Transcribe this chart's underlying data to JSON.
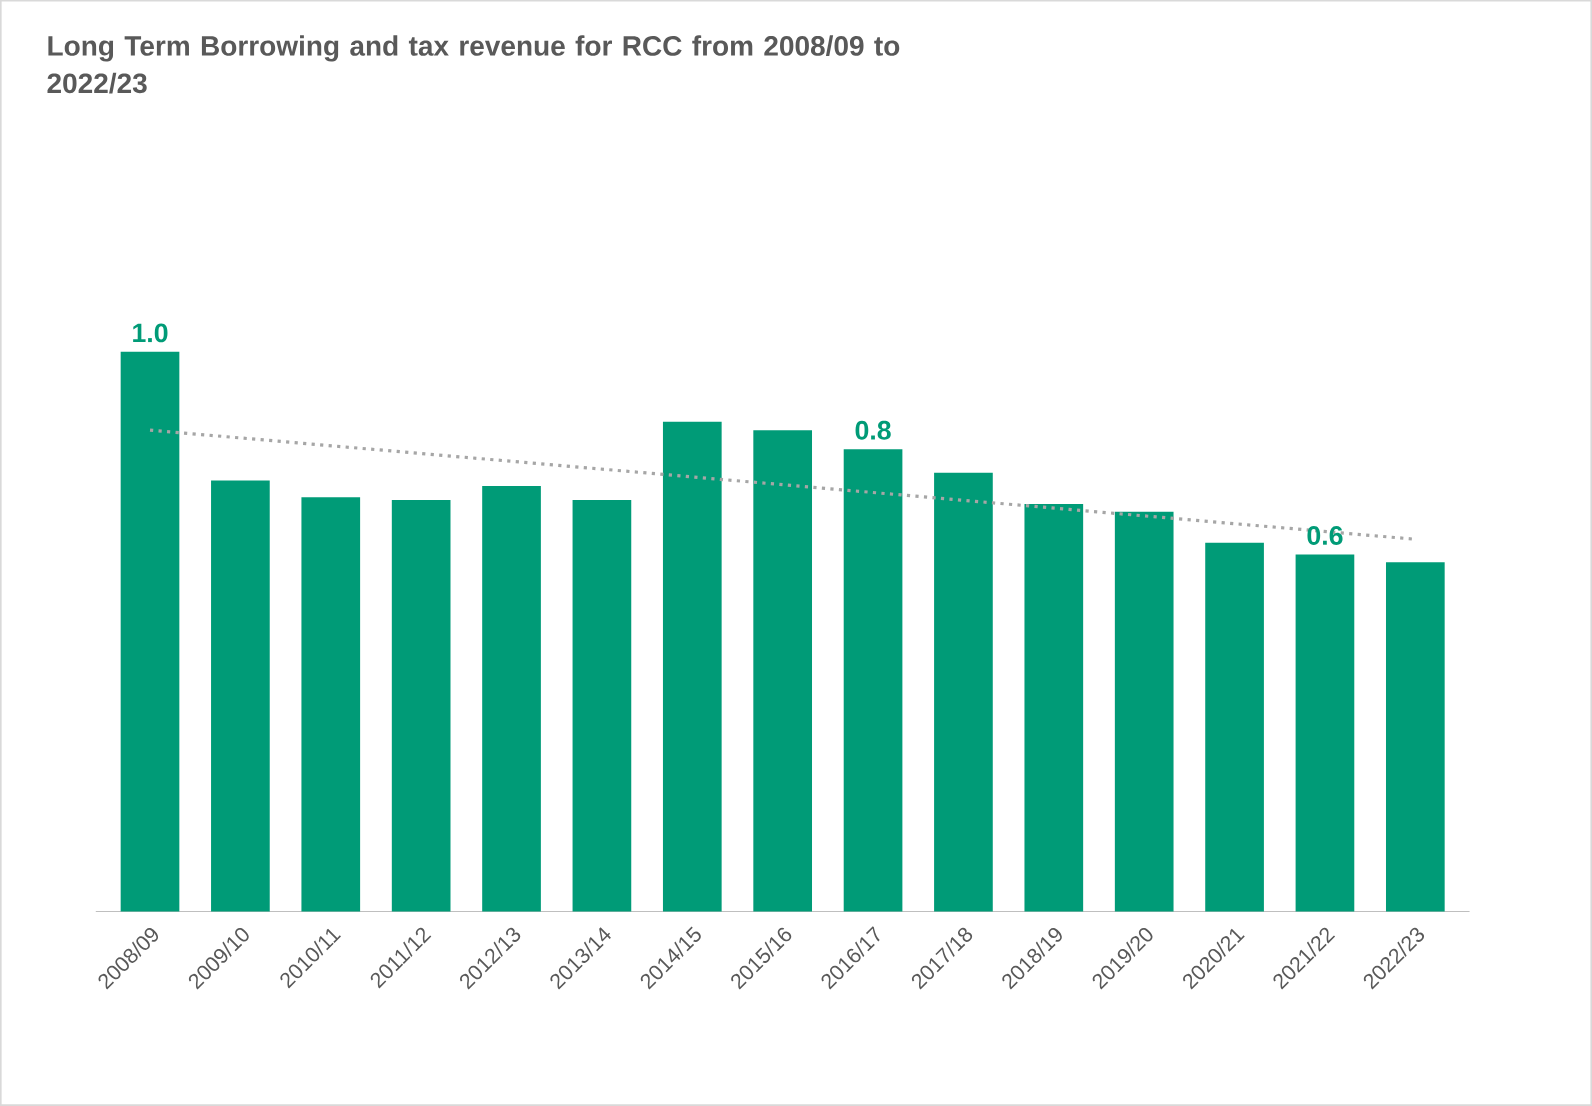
{
  "chart_data": {
    "type": "bar",
    "title": "Long Term Borrowing and tax revenue for RCC from 2008/09 to 2022/23",
    "categories": [
      "2008/09",
      "2009/10",
      "2010/11",
      "2011/12",
      "2012/13",
      "2013/14",
      "2014/15",
      "2015/16",
      "2016/17",
      "2017/18",
      "2018/19",
      "2019/20",
      "2020/21",
      "2021/22",
      "2022/23"
    ],
    "series": [
      {
        "color": "#009b77",
        "values": [
          1.0,
          0.77,
          0.74,
          0.735,
          0.76,
          0.735,
          0.875,
          0.86,
          0.826,
          0.784,
          0.728,
          0.714,
          0.659,
          0.638,
          0.624
        ],
        "value_labels": [
          "1.0",
          null,
          null,
          null,
          null,
          null,
          null,
          null,
          "0.8",
          null,
          null,
          null,
          null,
          "0.6",
          null
        ]
      },
      {
        "type": "line",
        "color": "#a6a6a6",
        "line_style": "dotted",
        "x": [
          "2008/09",
          "2022/23"
        ],
        "values": [
          0.86,
          0.665
        ]
      }
    ]
  }
}
